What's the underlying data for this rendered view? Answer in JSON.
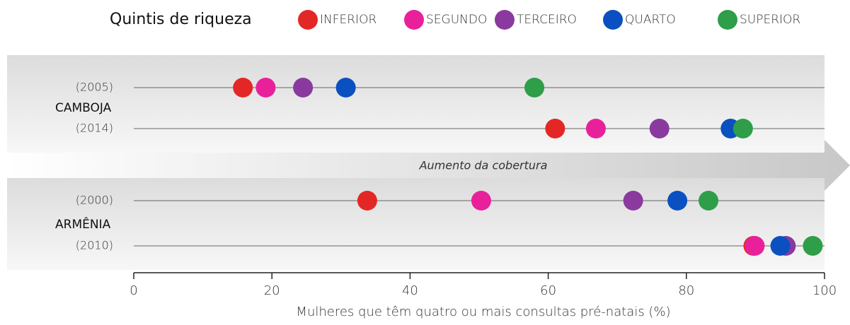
{
  "chart_data": {
    "type": "dot",
    "legend_title": "Quintis de riqueza",
    "annotation": "Aumento da cobertura",
    "x_label": "Mulheres que têm quatro ou mais consultas pré-natais (%)",
    "groups": [
      "CAMBOJA",
      "ARMÊNIA"
    ],
    "categories": [
      "(2005)",
      "(2014)",
      "(2000)",
      "(2010)"
    ],
    "series": [
      {
        "name": "INFERIOR",
        "color": "#e32726",
        "values": [
          15.8,
          61.0,
          33.8,
          89.7
        ]
      },
      {
        "name": "SEGUNDO",
        "color": "#e8219a",
        "values": [
          19.1,
          66.9,
          50.3,
          89.9
        ]
      },
      {
        "name": "TERCEIRO",
        "color": "#8a3a9e",
        "values": [
          24.5,
          76.1,
          72.3,
          94.4
        ]
      },
      {
        "name": "QUARTO",
        "color": "#0b50c0",
        "values": [
          30.7,
          86.4,
          78.7,
          93.6
        ]
      },
      {
        "name": "SUPERIOR",
        "color": "#2e9e48",
        "values": [
          58.0,
          88.2,
          83.2,
          98.3
        ]
      }
    ],
    "xlim": [
      0,
      100
    ],
    "xticks": [
      0,
      20,
      40,
      60,
      80,
      100
    ]
  }
}
